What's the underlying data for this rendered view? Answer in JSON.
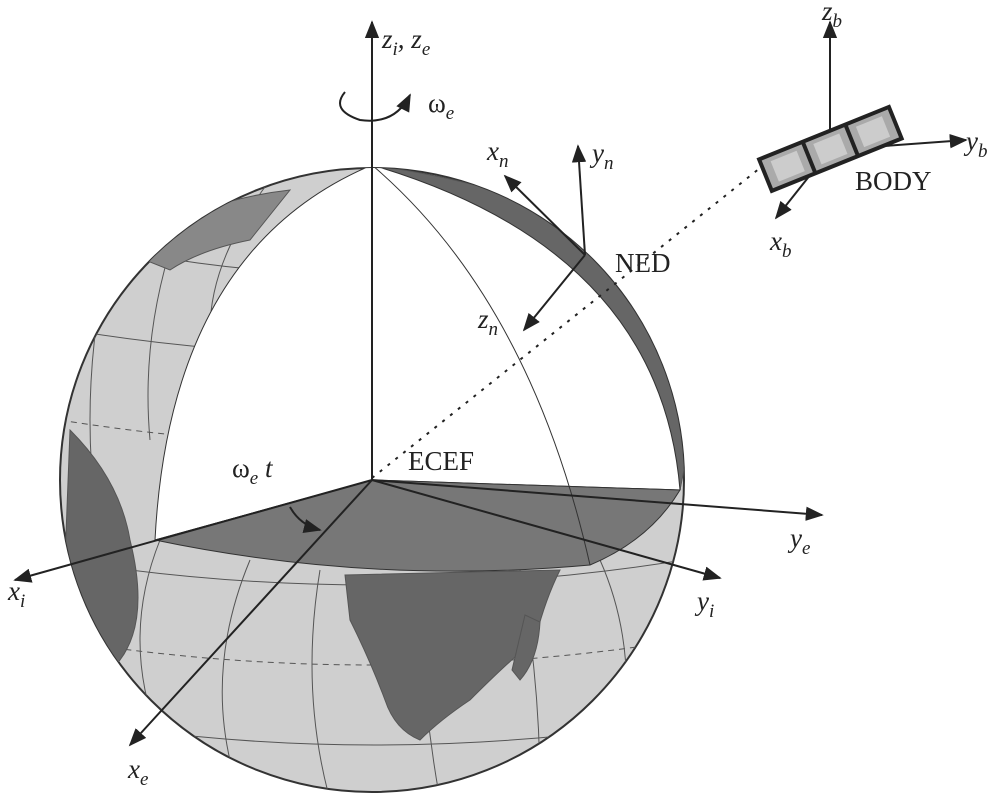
{
  "labels": [
    {
      "id": "zi-ze",
      "segments": [
        {
          "text": "z",
          "sub": false
        },
        {
          "text": "i",
          "sub": true
        },
        {
          "text": ", z",
          "sub": false
        },
        {
          "text": "e",
          "sub": true
        }
      ]
    },
    {
      "id": "omega-e",
      "segments": [
        {
          "text": "ω",
          "sub": false
        },
        {
          "text": "e",
          "sub": true
        }
      ]
    },
    {
      "id": "xn",
      "segments": [
        {
          "text": "x",
          "sub": false
        },
        {
          "text": "n",
          "sub": true
        }
      ]
    },
    {
      "id": "yn",
      "segments": [
        {
          "text": "y",
          "sub": false
        },
        {
          "text": "n",
          "sub": true
        }
      ]
    },
    {
      "id": "ned",
      "segments": [
        {
          "text": "NED",
          "sub": false
        }
      ]
    },
    {
      "id": "zn",
      "segments": [
        {
          "text": "z",
          "sub": false
        },
        {
          "text": "n",
          "sub": true
        }
      ]
    },
    {
      "id": "ecef",
      "segments": [
        {
          "text": "ECEF",
          "sub": false
        }
      ]
    },
    {
      "id": "omega-t",
      "segments": [
        {
          "text": "ω",
          "sub": false
        },
        {
          "text": "e",
          "sub": true
        },
        {
          "text": " t",
          "sub": false
        }
      ]
    },
    {
      "id": "xi",
      "segments": [
        {
          "text": "x",
          "sub": false
        },
        {
          "text": "i",
          "sub": true
        }
      ]
    },
    {
      "id": "yi",
      "segments": [
        {
          "text": "y",
          "sub": false
        },
        {
          "text": "i",
          "sub": true
        }
      ]
    },
    {
      "id": "xe",
      "segments": [
        {
          "text": "x",
          "sub": false
        },
        {
          "text": "e",
          "sub": true
        }
      ]
    },
    {
      "id": "ye",
      "segments": [
        {
          "text": "y",
          "sub": false
        },
        {
          "text": "e",
          "sub": true
        }
      ]
    },
    {
      "id": "zb",
      "segments": [
        {
          "text": "z",
          "sub": false
        },
        {
          "text": "b",
          "sub": true
        }
      ]
    },
    {
      "id": "yb",
      "segments": [
        {
          "text": "y",
          "sub": false
        },
        {
          "text": "b",
          "sub": true
        }
      ]
    },
    {
      "id": "body",
      "segments": [
        {
          "text": "BODY",
          "sub": false
        }
      ]
    },
    {
      "id": "xb",
      "segments": [
        {
          "text": "x",
          "sub": false
        },
        {
          "text": "b",
          "sub": true
        }
      ]
    }
  ]
}
